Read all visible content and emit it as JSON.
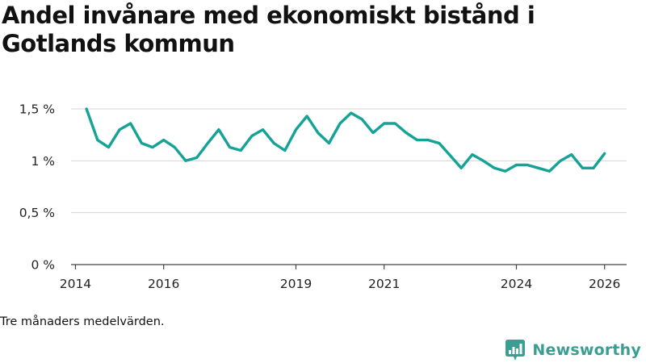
{
  "title": "Andel invånare med ekonomiskt bistånd i Gotlands kommun",
  "caption": "Tre månaders medelvärden.",
  "brand": {
    "name": "Newsworthy",
    "icon": "newsworthy-logo-icon"
  },
  "colors": {
    "line": "#14a396",
    "grid": "#d5d5d5",
    "axis": "#444444",
    "brand": "#3a9f92"
  },
  "chart_data": {
    "type": "line",
    "title": "Andel invånare med ekonomiskt bistånd i Gotlands kommun",
    "xlabel": "",
    "ylabel": "",
    "xlim": [
      2013.9,
      2026.5
    ],
    "ylim": [
      0,
      1.5
    ],
    "grid": true,
    "x_ticks": [
      {
        "value": 2014,
        "label": "2014"
      },
      {
        "value": 2016,
        "label": "2016"
      },
      {
        "value": 2019,
        "label": "2019"
      },
      {
        "value": 2021,
        "label": "2021"
      },
      {
        "value": 2024,
        "label": "2024"
      },
      {
        "value": 2026,
        "label": "2026"
      }
    ],
    "y_ticks": [
      {
        "value": 0,
        "label": "0 %"
      },
      {
        "value": 0.5,
        "label": "0,5 %"
      },
      {
        "value": 1,
        "label": "1 %"
      },
      {
        "value": 1.5,
        "label": "1,5 %"
      }
    ],
    "series": [
      {
        "name": "Andel invånare med ekonomiskt bistånd",
        "x": [
          2014.25,
          2014.5,
          2014.75,
          2015.0,
          2015.25,
          2015.5,
          2015.75,
          2016.0,
          2016.25,
          2016.5,
          2016.75,
          2017.0,
          2017.25,
          2017.5,
          2017.75,
          2018.0,
          2018.25,
          2018.5,
          2018.75,
          2019.0,
          2019.25,
          2019.5,
          2019.75,
          2020.0,
          2020.25,
          2020.5,
          2020.75,
          2021.0,
          2021.25,
          2021.5,
          2021.75,
          2022.0,
          2022.25,
          2022.5,
          2022.75,
          2023.0,
          2023.25,
          2023.5,
          2023.75,
          2024.0,
          2024.25,
          2024.5,
          2024.75,
          2025.0,
          2025.25,
          2025.5,
          2025.75,
          2026.0
        ],
        "values": [
          1.5,
          1.2,
          1.13,
          1.3,
          1.36,
          1.17,
          1.13,
          1.2,
          1.13,
          1.0,
          1.03,
          1.17,
          1.3,
          1.13,
          1.1,
          1.24,
          1.3,
          1.17,
          1.1,
          1.3,
          1.43,
          1.27,
          1.17,
          1.36,
          1.46,
          1.4,
          1.27,
          1.36,
          1.36,
          1.27,
          1.2,
          1.2,
          1.17,
          1.05,
          0.93,
          1.06,
          1.0,
          0.93,
          0.9,
          0.96,
          0.96,
          0.93,
          0.9,
          1.0,
          1.06,
          0.93,
          0.93,
          1.07
        ]
      }
    ]
  }
}
